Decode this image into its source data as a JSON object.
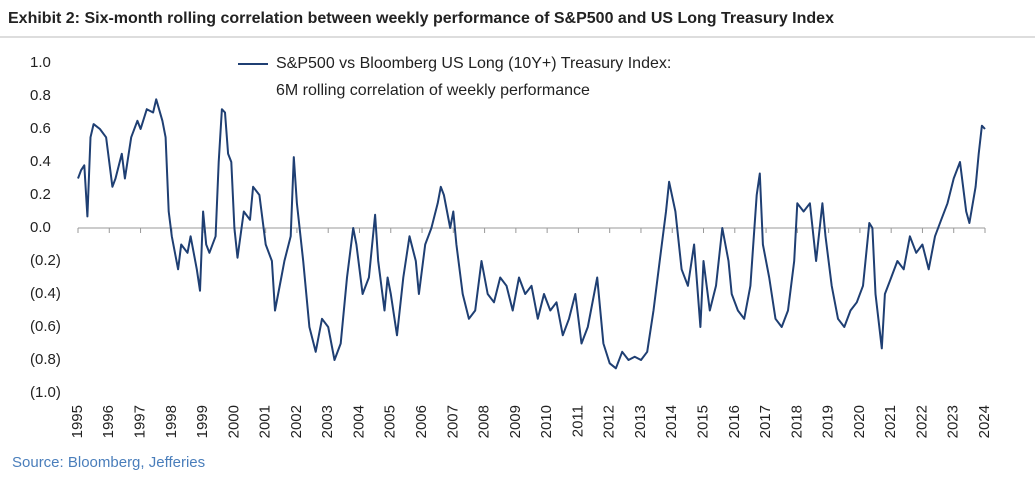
{
  "chart_data": {
    "type": "line",
    "title": "Exhibit 2: Six-month rolling correlation between weekly performance of S&P500 and US Long Treasury Index",
    "source": "Source: Bloomberg, Jefferies",
    "legend_note": "6M rolling correlation of weekly performance",
    "xlim": [
      1995,
      2024
    ],
    "xticks": [
      1995,
      1996,
      1997,
      1998,
      1999,
      2000,
      2001,
      2002,
      2003,
      2004,
      2005,
      2006,
      2007,
      2008,
      2009,
      2010,
      2011,
      2012,
      2013,
      2014,
      2015,
      2016,
      2017,
      2018,
      2019,
      2020,
      2021,
      2022,
      2023,
      2024
    ],
    "ylim": [
      -1.0,
      1.0
    ],
    "yticks": [
      {
        "value": 1.0,
        "label": "1.0"
      },
      {
        "value": 0.8,
        "label": "0.8"
      },
      {
        "value": 0.6,
        "label": "0.6"
      },
      {
        "value": 0.4,
        "label": "0.4"
      },
      {
        "value": 0.2,
        "label": "0.2"
      },
      {
        "value": 0.0,
        "label": "0.0"
      },
      {
        "value": -0.2,
        "label": "(0.2)"
      },
      {
        "value": -0.4,
        "label": "(0.4)"
      },
      {
        "value": -0.6,
        "label": "(0.6)"
      },
      {
        "value": -0.8,
        "label": "(0.8)"
      },
      {
        "value": -1.0,
        "label": "(1.0)"
      }
    ],
    "x": [
      1995.0,
      1995.1,
      1995.2,
      1995.3,
      1995.4,
      1995.5,
      1995.7,
      1995.9,
      1996.1,
      1996.2,
      1996.4,
      1996.5,
      1996.7,
      1996.9,
      1997.0,
      1997.2,
      1997.4,
      1997.5,
      1997.7,
      1997.8,
      1997.9,
      1998.0,
      1998.2,
      1998.3,
      1998.5,
      1998.6,
      1998.8,
      1998.9,
      1999.0,
      1999.1,
      1999.2,
      1999.4,
      1999.5,
      1999.6,
      1999.7,
      1999.8,
      1999.9,
      2000.0,
      2000.1,
      2000.3,
      2000.5,
      2000.6,
      2000.8,
      2001.0,
      2001.2,
      2001.3,
      2001.5,
      2001.6,
      2001.8,
      2001.9,
      2002.0,
      2002.2,
      2002.4,
      2002.6,
      2002.8,
      2003.0,
      2003.2,
      2003.4,
      2003.6,
      2003.8,
      2003.9,
      2004.1,
      2004.3,
      2004.5,
      2004.6,
      2004.8,
      2004.9,
      2005.0,
      2005.2,
      2005.4,
      2005.6,
      2005.8,
      2005.9,
      2006.1,
      2006.3,
      2006.5,
      2006.6,
      2006.7,
      2006.9,
      2007.0,
      2007.1,
      2007.3,
      2007.5,
      2007.7,
      2007.9,
      2008.1,
      2008.3,
      2008.5,
      2008.7,
      2008.9,
      2009.1,
      2009.3,
      2009.5,
      2009.7,
      2009.9,
      2010.1,
      2010.3,
      2010.5,
      2010.7,
      2010.9,
      2011.1,
      2011.3,
      2011.5,
      2011.6,
      2011.8,
      2012.0,
      2012.2,
      2012.4,
      2012.6,
      2012.8,
      2013.0,
      2013.2,
      2013.4,
      2013.6,
      2013.8,
      2013.9,
      2014.1,
      2014.3,
      2014.5,
      2014.7,
      2014.9,
      2015.0,
      2015.2,
      2015.4,
      2015.6,
      2015.8,
      2015.9,
      2016.1,
      2016.3,
      2016.5,
      2016.7,
      2016.8,
      2016.9,
      2017.1,
      2017.3,
      2017.5,
      2017.7,
      2017.9,
      2018.0,
      2018.2,
      2018.4,
      2018.6,
      2018.8,
      2018.9,
      2019.1,
      2019.3,
      2019.5,
      2019.7,
      2019.9,
      2020.1,
      2020.3,
      2020.4,
      2020.5,
      2020.7,
      2020.8,
      2021.0,
      2021.2,
      2021.4,
      2021.6,
      2021.8,
      2022.0,
      2022.2,
      2022.4,
      2022.6,
      2022.8,
      2023.0,
      2023.2,
      2023.4,
      2023.5,
      2023.7,
      2023.8,
      2023.9,
      2024.0
    ],
    "series": [
      {
        "name": "S&P500 vs Bloomberg US Long (10Y+) Treasury Index:",
        "color": "#1f3f73",
        "values": [
          0.3,
          0.35,
          0.38,
          0.07,
          0.55,
          0.63,
          0.6,
          0.55,
          0.25,
          0.3,
          0.45,
          0.3,
          0.55,
          0.65,
          0.6,
          0.72,
          0.7,
          0.78,
          0.65,
          0.55,
          0.1,
          -0.05,
          -0.25,
          -0.1,
          -0.15,
          -0.05,
          -0.25,
          -0.38,
          0.1,
          -0.1,
          -0.15,
          -0.05,
          0.4,
          0.72,
          0.7,
          0.45,
          0.4,
          0.0,
          -0.18,
          0.1,
          0.05,
          0.25,
          0.2,
          -0.1,
          -0.2,
          -0.5,
          -0.3,
          -0.2,
          -0.05,
          0.43,
          0.15,
          -0.2,
          -0.6,
          -0.75,
          -0.55,
          -0.6,
          -0.8,
          -0.7,
          -0.3,
          0.0,
          -0.1,
          -0.4,
          -0.3,
          0.08,
          -0.2,
          -0.5,
          -0.3,
          -0.4,
          -0.65,
          -0.3,
          -0.05,
          -0.2,
          -0.4,
          -0.1,
          0.0,
          0.15,
          0.25,
          0.2,
          0.0,
          0.1,
          -0.1,
          -0.4,
          -0.55,
          -0.5,
          -0.2,
          -0.4,
          -0.45,
          -0.3,
          -0.35,
          -0.5,
          -0.3,
          -0.4,
          -0.35,
          -0.55,
          -0.4,
          -0.5,
          -0.45,
          -0.65,
          -0.55,
          -0.4,
          -0.7,
          -0.6,
          -0.4,
          -0.3,
          -0.7,
          -0.82,
          -0.85,
          -0.75,
          -0.8,
          -0.78,
          -0.8,
          -0.75,
          -0.5,
          -0.2,
          0.1,
          0.28,
          0.1,
          -0.25,
          -0.35,
          -0.1,
          -0.6,
          -0.2,
          -0.5,
          -0.35,
          0.0,
          -0.2,
          -0.4,
          -0.5,
          -0.55,
          -0.35,
          0.2,
          0.33,
          -0.1,
          -0.3,
          -0.55,
          -0.6,
          -0.5,
          -0.2,
          0.15,
          0.1,
          0.15,
          -0.2,
          0.15,
          -0.05,
          -0.35,
          -0.55,
          -0.6,
          -0.5,
          -0.45,
          -0.35,
          0.03,
          0.0,
          -0.4,
          -0.73,
          -0.4,
          -0.3,
          -0.2,
          -0.25,
          -0.05,
          -0.15,
          -0.1,
          -0.25,
          -0.05,
          0.05,
          0.15,
          0.3,
          0.4,
          0.1,
          0.03,
          0.25,
          0.45,
          0.62,
          0.6
        ]
      }
    ]
  }
}
